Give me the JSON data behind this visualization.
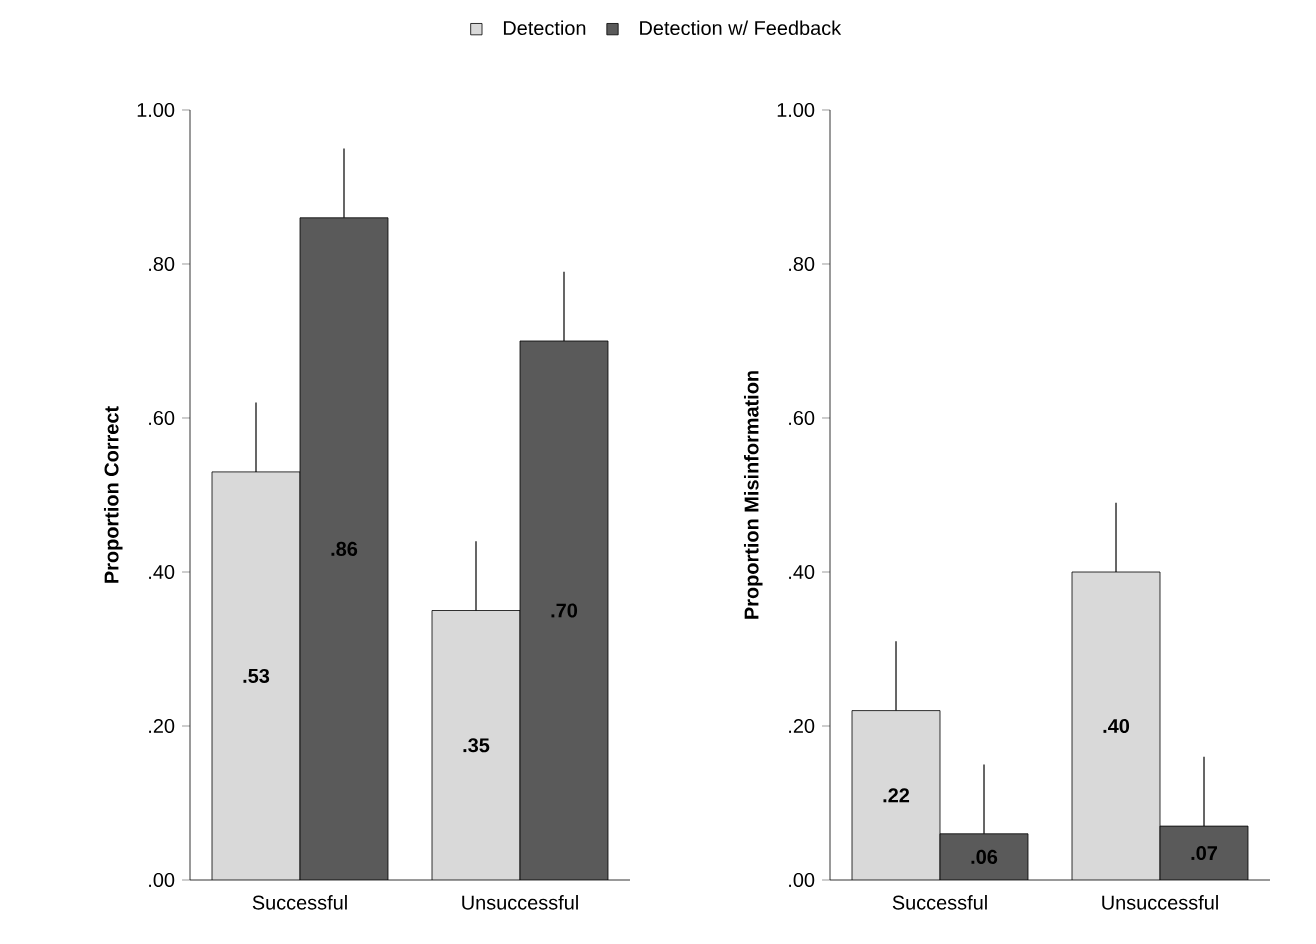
{
  "chart_data": [
    {
      "type": "bar",
      "ylabel": "Proportion Correct",
      "categories": [
        "Successful",
        "Unsuccessful"
      ],
      "legend": "top",
      "series": [
        {
          "name": "Detection",
          "color": "#d9d9d9",
          "values": [
            0.53,
            0.35
          ],
          "value_labels": [
            ".53",
            ".35"
          ],
          "errors": [
            [
              0.53,
              0.62
            ],
            [
              0.35,
              0.44
            ]
          ]
        },
        {
          "name": "Detection w/ Feedback",
          "color": "#5a5a5a",
          "values": [
            0.86,
            0.7
          ],
          "value_labels": [
            ".86",
            ".70"
          ],
          "errors": [
            [
              0.86,
              0.95
            ],
            [
              0.7,
              0.79
            ]
          ]
        }
      ],
      "ylim": [
        0,
        1
      ],
      "yticks": [
        {
          "value": 0,
          "label": ".00"
        },
        {
          "value": 0.2,
          "label": ".20"
        },
        {
          "value": 0.4,
          "label": ".40"
        },
        {
          "value": 0.6,
          "label": ".60"
        },
        {
          "value": 0.8,
          "label": ".80"
        },
        {
          "value": 1,
          "label": "1.00"
        }
      ]
    },
    {
      "type": "bar",
      "ylabel": "Proportion Misinformation",
      "categories": [
        "Successful",
        "Unsuccessful"
      ],
      "series": [
        {
          "color": "#d9d9d9",
          "values": [
            0.22,
            0.4
          ],
          "value_labels": [
            ".22",
            ".40"
          ],
          "errors": [
            [
              0.22,
              0.31
            ],
            [
              0.4,
              0.49
            ]
          ]
        },
        {
          "color": "#5a5a5a",
          "values": [
            0.06,
            0.07
          ],
          "value_labels": [
            ".06",
            ".07"
          ],
          "errors": [
            [
              0.06,
              0.15
            ],
            [
              0.07,
              0.16
            ]
          ]
        }
      ],
      "ylim": [
        0,
        1
      ],
      "yticks": [
        {
          "value": 0,
          "label": ".00"
        },
        {
          "value": 0.2,
          "label": ".20"
        },
        {
          "value": 0.4,
          "label": ".40"
        },
        {
          "value": 0.6,
          "label": ".60"
        },
        {
          "value": 0.8,
          "label": ".80"
        },
        {
          "value": 1,
          "label": "1.00"
        }
      ]
    }
  ]
}
